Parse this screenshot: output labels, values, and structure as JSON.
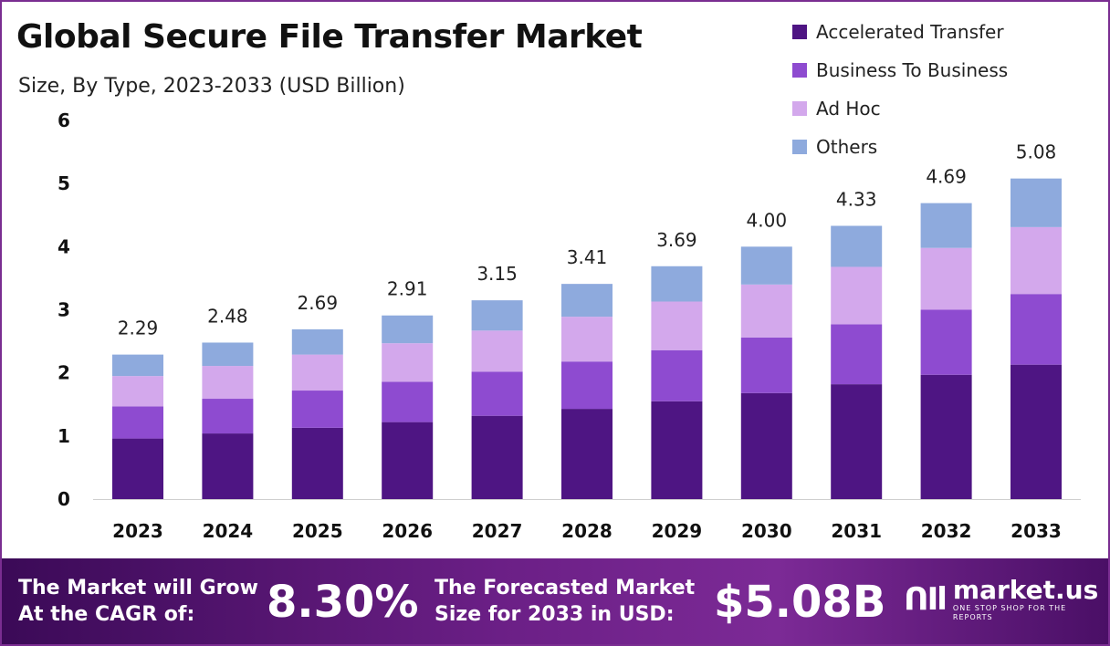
{
  "header": {
    "title": "Global Secure File Transfer Market",
    "subtitle": "Size, By Type, 2023-2033 (USD Billion)"
  },
  "chart_data": {
    "type": "bar",
    "stacked": true,
    "categories": [
      "2023",
      "2024",
      "2025",
      "2026",
      "2027",
      "2028",
      "2029",
      "2030",
      "2031",
      "2032",
      "2033"
    ],
    "series": [
      {
        "name": "Accelerated Transfer",
        "color": "#4e1583",
        "values": [
          0.96,
          1.04,
          1.13,
          1.22,
          1.32,
          1.43,
          1.55,
          1.68,
          1.82,
          1.97,
          2.13
        ]
      },
      {
        "name": "Business To Business",
        "color": "#8e4bd0",
        "values": [
          0.51,
          0.55,
          0.59,
          0.64,
          0.7,
          0.75,
          0.81,
          0.88,
          0.95,
          1.03,
          1.12
        ]
      },
      {
        "name": "Ad Hoc",
        "color": "#d3a8ec",
        "values": [
          0.48,
          0.52,
          0.57,
          0.61,
          0.65,
          0.71,
          0.77,
          0.84,
          0.91,
          0.98,
          1.06
        ]
      },
      {
        "name": "Others",
        "color": "#8eaadd",
        "values": [
          0.34,
          0.37,
          0.4,
          0.44,
          0.48,
          0.52,
          0.56,
          0.6,
          0.65,
          0.71,
          0.77
        ]
      }
    ],
    "totals": [
      "2.29",
      "2.48",
      "2.69",
      "2.91",
      "3.15",
      "3.41",
      "3.69",
      "4.00",
      "4.33",
      "4.69",
      "5.08"
    ],
    "y_ticks": [
      "0",
      "1",
      "2",
      "3",
      "4",
      "5",
      "6"
    ],
    "ylim": [
      0,
      6
    ],
    "xlabel": "",
    "ylabel": "",
    "grid": false,
    "legend_position": "top-right"
  },
  "banner": {
    "cagr_label_line1": "The Market will Grow",
    "cagr_label_line2": "At the CAGR of:",
    "cagr_value": "8.30%",
    "forecast_label_line1": "The Forecasted Market",
    "forecast_label_line2": "Size for 2033 in USD:",
    "forecast_value": "$5.08B",
    "logo_name": "market.us",
    "logo_tagline": "ONE STOP SHOP FOR THE REPORTS"
  }
}
